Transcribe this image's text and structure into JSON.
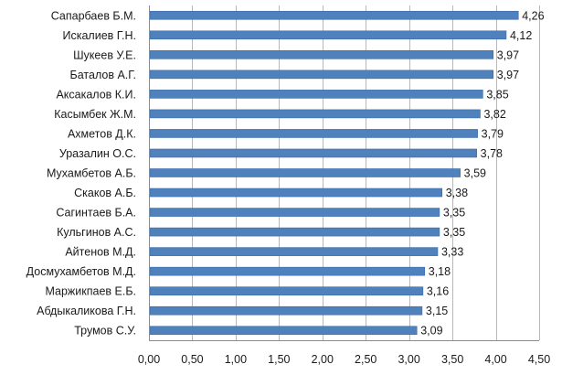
{
  "chart_data": {
    "type": "bar",
    "orientation": "horizontal",
    "title": "",
    "xlabel": "",
    "ylabel": "",
    "xlim": [
      0,
      4.5
    ],
    "x_ticks": [
      "0,00",
      "0,50",
      "1,00",
      "1,50",
      "2,00",
      "2,50",
      "3,00",
      "3,50",
      "4,00",
      "4,50"
    ],
    "x_tick_values": [
      0,
      0.5,
      1,
      1.5,
      2,
      2.5,
      3,
      3.5,
      4,
      4.5
    ],
    "grid": true,
    "legend": "none",
    "categories": [
      "Сапарбаев Б.М.",
      "Искалиев Г.Н.",
      "Шукеев У.Е.",
      "Баталов А.Г.",
      "Аксакалов К.И.",
      "Касымбек Ж.М.",
      "Ахметов Д.К.",
      "Уразалин О.С.",
      "Мухамбетов А.Б.",
      "Скаков А.Б.",
      "Сагинтаев Б.А.",
      "Кульгинов А.С.",
      "Айтенов М.Д.",
      "Досмухамбетов М.Д.",
      "Маржикпаев Е.Б.",
      "Абдыкаликова Г.Н.",
      "Трумов С.У."
    ],
    "values": [
      4.26,
      4.12,
      3.97,
      3.97,
      3.85,
      3.82,
      3.79,
      3.78,
      3.59,
      3.38,
      3.35,
      3.35,
      3.33,
      3.18,
      3.16,
      3.15,
      3.09
    ],
    "value_labels": [
      "4,26",
      "4,12",
      "3,97",
      "3,97",
      "3,85",
      "3,82",
      "3,79",
      "3,78",
      "3,59",
      "3,38",
      "3,35",
      "3,35",
      "3,33",
      "3,18",
      "3,16",
      "3,15",
      "3,09"
    ],
    "colors": {
      "bar": "#4f81bd",
      "bar_edge": "#3a6aa8",
      "grid": "#b8b8b8",
      "axis": "#8c8c8c"
    }
  }
}
